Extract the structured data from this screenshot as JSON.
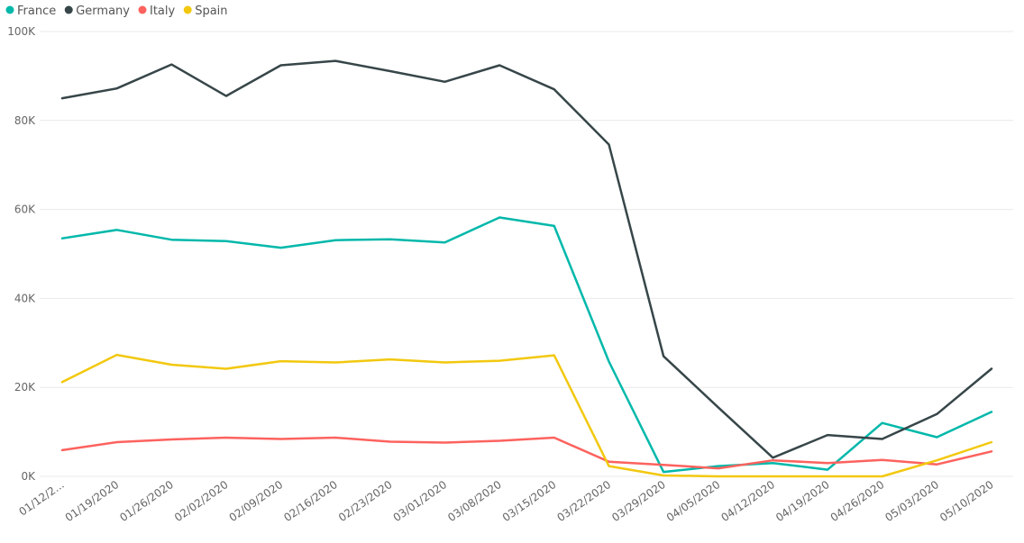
{
  "chart_data": {
    "type": "line",
    "title": "",
    "xlabel": "",
    "ylabel": "",
    "categories": [
      "01/12/2...",
      "01/19/2020",
      "01/26/2020",
      "02/02/2020",
      "02/09/2020",
      "02/16/2020",
      "02/23/2020",
      "03/01/2020",
      "03/08/2020",
      "03/15/2020",
      "03/22/2020",
      "03/29/2020",
      "04/05/2020",
      "04/12/2020",
      "04/19/2020",
      "04/26/2020",
      "05/03/2020",
      "05/10/2020"
    ],
    "y_ticks": [
      0,
      20000,
      40000,
      60000,
      80000,
      100000
    ],
    "y_tick_labels": [
      "0K",
      "20K",
      "40K",
      "60K",
      "80K",
      "100K"
    ],
    "ylim": [
      0,
      100000
    ],
    "grid": true,
    "legend_position": "top-left",
    "series": [
      {
        "name": "France",
        "color": "#01b8aa",
        "values": [
          53500,
          55400,
          53200,
          52900,
          51400,
          53100,
          53300,
          52600,
          58200,
          56300,
          25800,
          1000,
          2300,
          3000,
          1500,
          12000,
          8800,
          14500
        ]
      },
      {
        "name": "Germany",
        "color": "#374649",
        "values": [
          85000,
          87200,
          92600,
          85500,
          92400,
          93400,
          91100,
          88700,
          92400,
          87000,
          74600,
          27000,
          15500,
          4200,
          9300,
          8400,
          14000,
          24200
        ]
      },
      {
        "name": "Italy",
        "color": "#fd625e",
        "values": [
          5900,
          7700,
          8300,
          8700,
          8400,
          8700,
          7800,
          7600,
          8000,
          8700,
          3300,
          2600,
          1800,
          3600,
          3000,
          3700,
          2700,
          5600
        ]
      },
      {
        "name": "Spain",
        "color": "#f2c80f",
        "values": [
          21200,
          27300,
          25100,
          24200,
          25900,
          25600,
          26300,
          25600,
          26000,
          27200,
          2300,
          200,
          0,
          0,
          0,
          0,
          3600,
          7700
        ]
      }
    ]
  }
}
